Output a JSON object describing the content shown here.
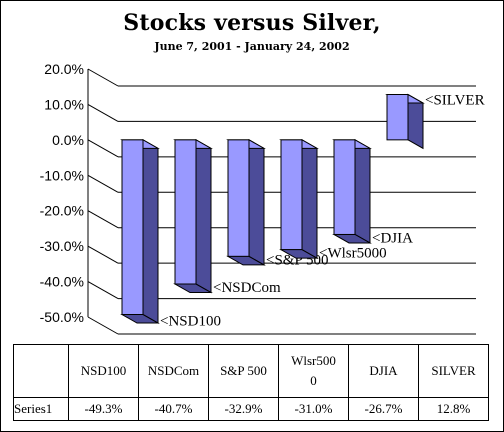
{
  "chart_data": {
    "type": "bar",
    "title": "Stocks versus Silver,",
    "subtitle": "June 7, 2001 - January 24, 2002",
    "categories": [
      "NSD100",
      "NSDCom",
      "S&P 500",
      "Wlsr5000",
      "DJIA",
      "SILVER"
    ],
    "table_headers": [
      "NSD100",
      "NSDCom",
      "S&P 500",
      "Wlsr500\n0",
      "DJIA",
      "SILVER"
    ],
    "bar_labels": [
      "<NSD100",
      "<NSDCom",
      "<S&P 500",
      "<Wlsr5000",
      "<DJIA",
      "<SILVER"
    ],
    "series": [
      {
        "name": "Series1",
        "values": [
          -0.493,
          -0.407,
          -0.329,
          -0.31,
          -0.267,
          0.128
        ],
        "display": [
          "-49.3%",
          "-40.7%",
          "-32.9%",
          "-31.0%",
          "-26.7%",
          "12.8%"
        ]
      }
    ],
    "ylim": [
      -0.5,
      0.2
    ],
    "yticks": [
      "20.0%",
      "10.0%",
      "0.0%",
      "-10.0%",
      "-20.0%",
      "-30.0%",
      "-40.0%",
      "-50.0%"
    ],
    "grid": true,
    "legend": "none",
    "colors": {
      "front": "#9999ff",
      "side": "#4c4c99",
      "top": "#9999ff",
      "edge": "#000000"
    }
  }
}
